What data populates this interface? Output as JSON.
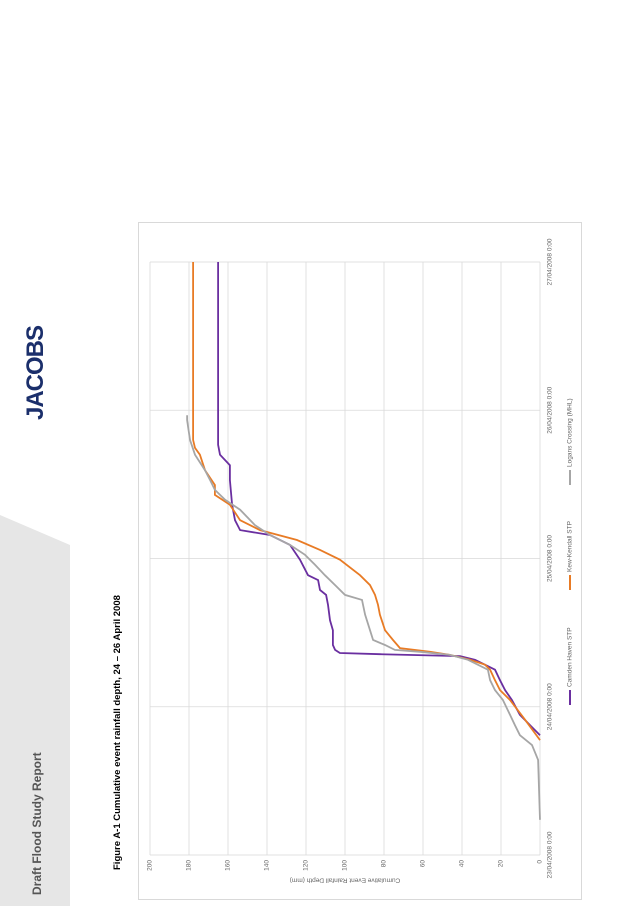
{
  "header": {
    "title": "Draft Flood Study Report",
    "logo": "JACOBS"
  },
  "figure": {
    "caption": "Figure A-1 Cumulative event rainfall depth, 24 – 26 April 2008"
  },
  "chart_data": {
    "type": "line",
    "ylabel": "Cumulative Event Rainfall Depth (mm)",
    "xlim": [
      0,
      96
    ],
    "xticks": [
      {
        "value": 0,
        "label": "23/04/2008 0:00"
      },
      {
        "value": 24,
        "label": "24/04/2008 0:00"
      },
      {
        "value": 48,
        "label": "25/04/2008 0:00"
      },
      {
        "value": 72,
        "label": "26/04/2008 0:00"
      },
      {
        "value": 96,
        "label": "27/04/2008 0:00"
      }
    ],
    "ylim": [
      0,
      200
    ],
    "yticks": [
      0,
      20,
      40,
      60,
      80,
      100,
      120,
      140,
      160,
      180,
      200
    ],
    "grid": true,
    "legend": "bottom",
    "series": [
      {
        "name": "Camden Haven STP",
        "color": "#6a2fa0",
        "x": [
          19.4,
          21.0,
          22.7,
          25.1,
          26.7,
          28.3,
          30.0,
          31.6,
          32.2,
          32.5,
          32.7,
          33.2,
          34.0,
          36.4,
          38.0,
          40.5,
          42.1,
          42.9,
          44.5,
          45.3,
          47.8,
          50.2,
          51.8,
          52.6,
          54.2,
          56.7,
          60.7,
          63.1,
          64.8,
          66.4,
          96.0
        ],
        "values": [
          0,
          5.1,
          10.3,
          14.4,
          17.9,
          20.5,
          23.1,
          33.3,
          41.0,
          82.1,
          102.6,
          105.1,
          106.2,
          106.2,
          107.7,
          108.7,
          109.7,
          112.8,
          113.8,
          119.0,
          123.1,
          128.2,
          138.5,
          153.8,
          156.4,
          157.9,
          159.0,
          159.0,
          164.1,
          165.1,
          165.1
        ]
      },
      {
        "name": "Kew-Kendall STP",
        "color": "#e87b25",
        "x": [
          18.6,
          21.9,
          25.1,
          26.7,
          28.3,
          30.0,
          30.8,
          31.6,
          32.4,
          32.9,
          33.5,
          34.8,
          36.4,
          38.9,
          40.5,
          42.1,
          43.7,
          45.3,
          47.8,
          49.4,
          51.0,
          52.6,
          54.2,
          56.7,
          58.3,
          59.9,
          62.3,
          64.8,
          65.9,
          67.2,
          96.0
        ],
        "values": [
          0,
          7.7,
          15.4,
          20.5,
          23.1,
          25.6,
          28.2,
          35.9,
          46.2,
          56.4,
          71.8,
          75.4,
          79.5,
          82.1,
          83.1,
          84.6,
          87.2,
          92.3,
          102.6,
          112.8,
          124.6,
          143.6,
          153.8,
          159.0,
          166.7,
          166.7,
          171.8,
          174.4,
          176.9,
          177.9,
          177.9
        ]
      },
      {
        "name": "Logans Crossing (MHL)",
        "color": "#a6a6a6",
        "x": [
          5.7,
          15.4,
          17.8,
          19.4,
          21.0,
          22.7,
          25.1,
          26.7,
          28.3,
          30.0,
          31.6,
          32.4,
          32.9,
          33.2,
          34.0,
          34.8,
          36.4,
          38.9,
          41.3,
          42.1,
          43.7,
          45.3,
          47.0,
          48.6,
          50.2,
          51.8,
          53.4,
          55.9,
          57.5,
          59.1,
          60.7,
          62.3,
          64.8,
          67.2,
          70.4,
          71.2
        ],
        "values": [
          0,
          1.0,
          4.1,
          10.3,
          12.8,
          15.4,
          19.0,
          23.1,
          25.6,
          26.7,
          36.9,
          46.2,
          61.5,
          74.4,
          79.5,
          85.6,
          87.2,
          89.7,
          91.3,
          100.0,
          105.1,
          110.3,
          115.4,
          120.5,
          128.2,
          138.5,
          146.2,
          153.8,
          161.5,
          166.7,
          169.2,
          171.8,
          176.9,
          179.5,
          181.0,
          181.0
        ]
      }
    ]
  }
}
